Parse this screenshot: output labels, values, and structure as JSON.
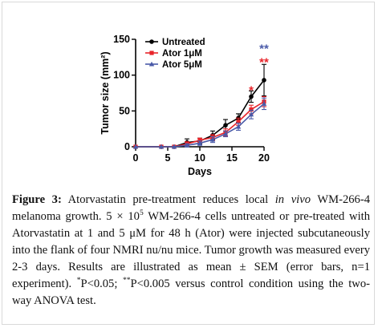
{
  "chart_data": {
    "type": "line",
    "xlabel": "Days",
    "ylabel": "Tumor size (mm²)",
    "xlim": [
      0,
      20
    ],
    "ylim": [
      0,
      150
    ],
    "xticks": [
      "0",
      "5",
      "10",
      "15",
      "20"
    ],
    "yticks": [
      "0",
      "50",
      "100",
      "150"
    ],
    "grid": false,
    "legend_position": "top-left",
    "series": [
      {
        "name": "Untreated",
        "color": "#000000",
        "marker": "circle",
        "x": [
          0,
          4,
          6,
          8,
          10,
          12,
          14,
          16,
          18,
          20
        ],
        "y": [
          0,
          0,
          0,
          6,
          8,
          16,
          30,
          40,
          70,
          93
        ],
        "error": [
          0,
          0,
          0,
          5,
          4,
          6,
          8,
          6,
          8,
          22
        ]
      },
      {
        "name": "Ator 1μM",
        "color": "#e8252b",
        "marker": "square",
        "x": [
          0,
          4,
          6,
          8,
          10,
          12,
          14,
          16,
          18,
          20
        ],
        "y": [
          0,
          0,
          0,
          4,
          9,
          13,
          20,
          35,
          52,
          63
        ],
        "error": [
          0,
          0,
          0,
          3,
          3,
          4,
          5,
          5,
          6,
          7
        ]
      },
      {
        "name": "Ator 5μM",
        "color": "#4a5aa8",
        "marker": "triangle",
        "x": [
          0,
          4,
          6,
          8,
          10,
          12,
          14,
          16,
          18,
          20
        ],
        "y": [
          0,
          0,
          0,
          2,
          5,
          10,
          18,
          28,
          45,
          60
        ],
        "error": [
          0,
          0,
          0,
          2,
          3,
          4,
          4,
          5,
          6,
          8
        ]
      }
    ],
    "annotations": [
      {
        "text": "**",
        "x": 20,
        "y": 138,
        "color": "#4a5aa8"
      },
      {
        "text": "**",
        "x": 20,
        "y": 119,
        "color": "#e8252b"
      },
      {
        "text": "*",
        "x": 18,
        "y": 80,
        "color": "#e8252b"
      }
    ]
  },
  "caption": {
    "label": "Figure 3:",
    "text1": " Atorvastatin pre-treatment reduces local ",
    "italic": "in vivo",
    "text2": " WM-266-4 melanoma growth. 5 × 10",
    "sup1": "5",
    "text3": " WM-266-4 cells untreated or pre-treated with Atorvastatin at 1 and 5 μM for 48 h (Ator) were injected subcutaneously into the flank of four NMRI nu/nu mice. Tumor growth was measured every 2-3 days. Results are illustrated as mean ± SEM (error bars, n=1 experiment). ",
    "sup2": "*",
    "text4": "P<0.05; ",
    "sup3": "**",
    "text5": "P<0.005 versus control condition using the two-way ANOVA test."
  }
}
